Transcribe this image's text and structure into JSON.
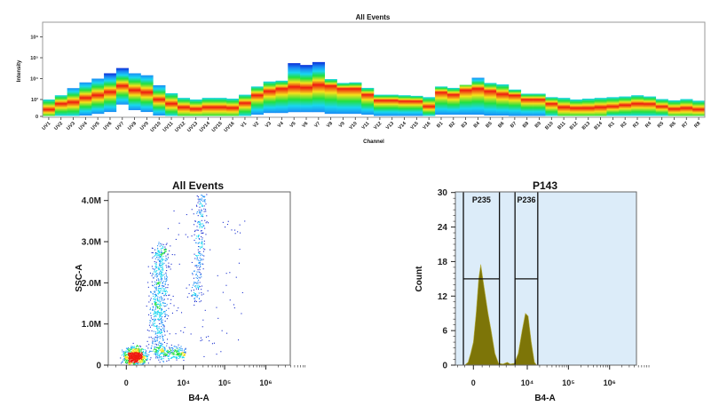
{
  "chart_data": [
    {
      "type": "heatmap",
      "title": "All Events",
      "xlabel": "Channel",
      "ylabel": "Intensity",
      "y_scale": "logicle",
      "y_ticks": [
        "0",
        "10³",
        "10⁴",
        "10⁵",
        "10⁶"
      ],
      "y_tick_values": [
        0,
        1000,
        10000,
        100000,
        1000000
      ],
      "categories": [
        "UV1",
        "UV2",
        "UV3",
        "UV4",
        "UV5",
        "UV6",
        "UV7",
        "UV8",
        "UV9",
        "UV10",
        "UV11",
        "UV12",
        "UV13",
        "UV14",
        "UV15",
        "UV16",
        "V1",
        "V2",
        "V3",
        "V4",
        "V5",
        "V6",
        "V7",
        "V8",
        "V9",
        "V10",
        "V11",
        "V12",
        "V13",
        "V14",
        "V15",
        "V16",
        "B1",
        "B2",
        "B3",
        "B4",
        "B5",
        "B6",
        "B7",
        "B8",
        "B9",
        "B10",
        "B11",
        "B12",
        "B13",
        "B14",
        "R1",
        "R2",
        "R3",
        "R4",
        "R5",
        "R6",
        "R7",
        "R8"
      ],
      "upper": [
        1000,
        1600,
        3500,
        6600,
        10000,
        18000,
        32000,
        18000,
        14500,
        4800,
        2000,
        1200,
        1000,
        1200,
        1200,
        1100,
        1700,
        4200,
        7300,
        8000,
        55000,
        45000,
        62000,
        9500,
        6200,
        6600,
        3600,
        1700,
        1700,
        1600,
        1500,
        1300,
        4200,
        3600,
        5000,
        11000,
        6200,
        5300,
        3000,
        1900,
        1900,
        1300,
        1200,
        1000,
        1100,
        1200,
        1300,
        1400,
        1600,
        1400,
        1050,
        950,
        1050,
        930
      ],
      "peak": [
        400,
        750,
        840,
        1200,
        1600,
        2300,
        4500,
        2800,
        2200,
        1000,
        750,
        540,
        440,
        540,
        540,
        500,
        790,
        1600,
        2500,
        3300,
        4000,
        3700,
        5000,
        4500,
        3300,
        3300,
        1700,
        950,
        950,
        900,
        900,
        580,
        2200,
        1700,
        2800,
        3300,
        2500,
        1800,
        1600,
        1000,
        1000,
        750,
        540,
        490,
        490,
        540,
        580,
        670,
        750,
        740,
        580,
        440,
        490,
        410
      ],
      "lower": [
        0,
        0,
        0,
        50,
        150,
        260,
        700,
        370,
        260,
        50,
        0,
        0,
        0,
        0,
        0,
        0,
        0,
        100,
        200,
        200,
        250,
        250,
        250,
        150,
        150,
        150,
        100,
        0,
        0,
        0,
        0,
        0,
        100,
        100,
        100,
        100,
        50,
        50,
        0,
        0,
        0,
        0,
        0,
        0,
        0,
        0,
        0,
        0,
        0,
        0,
        0,
        0,
        0,
        0
      ],
      "colormap": [
        "#0a2fd8",
        "#1a8cf5",
        "#19d6f0",
        "#22e040",
        "#f5e21a",
        "#ee1a10"
      ]
    },
    {
      "type": "scatter",
      "title": "All Events",
      "xlabel": "B4-A",
      "ylabel": "SSC-A",
      "x_scale": "logicle",
      "x_ticks": [
        "0",
        "10⁴",
        "10⁵",
        "10⁶"
      ],
      "x_tick_values": [
        0,
        10000,
        100000,
        1000000
      ],
      "y_ticks": [
        "0",
        "1.0M",
        "2.0M",
        "3.0M",
        "4.0M"
      ],
      "y_tick_values": [
        0,
        1000000,
        2000000,
        3000000,
        4000000
      ],
      "ylim": [
        0,
        4200000
      ],
      "populations": [
        {
          "x_center": 400,
          "y_center": 220000,
          "events": 700
        },
        {
          "x_center": 2200,
          "y_from": 300000,
          "y_to": 2900000,
          "events": 650
        },
        {
          "x_from": 2000,
          "x_to": 11000,
          "y_center": 300000,
          "events": 250
        },
        {
          "x_from": 19000,
          "x_to": 28000,
          "y_from": 1500000,
          "y_to": 4200000,
          "events": 260
        },
        {
          "x_from": 3000,
          "x_to": 300000,
          "y_from": 200000,
          "y_to": 3800000,
          "events": 90
        }
      ],
      "colormap": [
        "#1a2fd0",
        "#1a8cf5",
        "#19d6f0",
        "#22e040",
        "#f5e21a",
        "#ee1a10"
      ]
    },
    {
      "type": "area",
      "title": "P143",
      "xlabel": "B4-A",
      "ylabel": "Count",
      "x_scale": "logicle",
      "x_ticks": [
        "0",
        "10⁴",
        "10⁵",
        "10⁶"
      ],
      "x_tick_values": [
        0,
        10000,
        100000,
        1000000
      ],
      "y_ticks": [
        "0",
        "6",
        "12",
        "18",
        "24",
        "30"
      ],
      "y_tick_values": [
        0,
        6,
        12,
        18,
        24,
        30
      ],
      "ylim": [
        0,
        30
      ],
      "x": [
        -500,
        -300,
        -150,
        0,
        150,
        300,
        420,
        600,
        900,
        1150,
        1500,
        1900,
        2500,
        3200,
        3800,
        4800,
        6000,
        7500,
        9000,
        10500,
        12500,
        15000,
        17000
      ],
      "values": [
        0,
        0.5,
        2,
        4,
        9,
        15,
        17.5,
        14,
        9,
        6,
        2,
        0.3,
        0.2,
        0.5,
        0.2,
        0.3,
        2,
        6,
        9,
        8.5,
        4,
        0.5,
        0
      ],
      "gates": [
        {
          "label": "P235",
          "x_from": -580,
          "x_to": 2000,
          "level": 15
        },
        {
          "label": "P236",
          "x_from": 5000,
          "x_to": 18000,
          "level": 15
        }
      ],
      "fill_color": "#7d7508",
      "background_color": "#dcecf9"
    }
  ]
}
